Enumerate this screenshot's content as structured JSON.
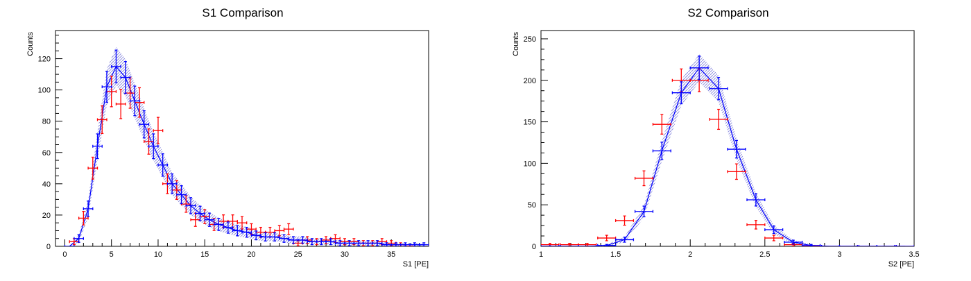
{
  "chart_data": [
    {
      "type": "scatter",
      "title": "S1 Comparison",
      "xlabel": "S1 [PE]",
      "ylabel": "Counts",
      "xlim": [
        -1,
        39
      ],
      "ylim": [
        0,
        138
      ],
      "xticks": [
        0,
        5,
        10,
        15,
        20,
        25,
        30,
        35
      ],
      "yticks": [
        0,
        20,
        40,
        60,
        80,
        100,
        120
      ],
      "grid": false,
      "legend": "none",
      "colors": {
        "series_red": "#ff0000",
        "series_blue": "#0000ff",
        "band": "#9090e0"
      },
      "series": [
        {
          "style": "red-points",
          "x": [
            1,
            2,
            3,
            4,
            5,
            6,
            7,
            8,
            9,
            10,
            11,
            12,
            13,
            14,
            15,
            16,
            17,
            18,
            19,
            20,
            21,
            22,
            23,
            24,
            25,
            26,
            27,
            28,
            29,
            30,
            31,
            32,
            33,
            34,
            35,
            36,
            37
          ],
          "y": [
            3,
            18,
            50,
            81,
            99,
            91,
            98,
            92,
            67,
            74,
            40,
            36,
            27,
            17,
            19,
            14,
            16,
            16,
            15,
            11,
            9,
            9,
            10,
            11,
            2,
            4,
            3,
            4,
            5,
            3,
            3,
            2,
            2,
            3,
            2,
            1,
            0
          ],
          "xerr": 0.5
        },
        {
          "style": "blue-model",
          "x": [
            0.5,
            1.5,
            2.5,
            3.5,
            4.5,
            5.5,
            6.5,
            7.5,
            8.5,
            9.5,
            10.5,
            11.5,
            12.5,
            13.5,
            14.5,
            15.5,
            16.5,
            17.5,
            18.5,
            19.5,
            20.5,
            21.5,
            22.5,
            23.5,
            24.5,
            25.5,
            26.5,
            27.5,
            28.5,
            29.5,
            30.5,
            31.5,
            32.5,
            33.5,
            34.5,
            35.5,
            36.5,
            37.5,
            38.5
          ],
          "y": [
            0,
            5,
            24,
            64,
            102,
            115,
            108,
            93,
            78,
            64,
            52,
            40,
            33,
            26,
            21,
            17,
            14,
            12,
            10,
            9,
            7,
            6,
            6,
            5,
            4,
            4,
            3,
            3,
            3,
            2,
            2,
            2,
            2,
            2,
            1,
            1,
            1,
            1,
            1
          ],
          "xerr": 0.5
        }
      ]
    },
    {
      "type": "scatter",
      "title": "S2 Comparison",
      "xlabel": "S2 [PE]",
      "ylabel": "Counts",
      "xlim": [
        1,
        3.5
      ],
      "ylim": [
        0,
        260
      ],
      "xticks": [
        1,
        1.5,
        2,
        2.5,
        3,
        3.5
      ],
      "yticks": [
        0,
        50,
        100,
        150,
        200,
        250
      ],
      "grid": false,
      "legend": "none",
      "colors": {
        "series_red": "#ff0000",
        "series_blue": "#0000ff",
        "band": "#9090e0"
      },
      "series": [
        {
          "style": "red-points",
          "x": [
            1.06,
            1.19,
            1.31,
            1.44,
            1.56,
            1.69,
            1.81,
            1.94,
            2.06,
            2.19,
            2.31,
            2.44,
            2.56,
            2.69,
            2.81,
            2.94,
            3.06,
            3.19,
            3.31,
            3.44
          ],
          "y": [
            2,
            2,
            2,
            10,
            31,
            82,
            147,
            200,
            200,
            153,
            90,
            26,
            10,
            2,
            0,
            0,
            0,
            0,
            0,
            0
          ],
          "xerr": 0.06
        },
        {
          "style": "blue-model",
          "x": [
            1.0,
            1.06,
            1.19,
            1.31,
            1.44,
            1.56,
            1.69,
            1.81,
            1.94,
            2.06,
            2.19,
            2.31,
            2.44,
            2.56,
            2.69,
            2.81,
            2.94,
            3.06,
            3.19,
            3.31,
            3.44
          ],
          "y": [
            0,
            0,
            0,
            0,
            1,
            8,
            42,
            115,
            185,
            215,
            190,
            117,
            56,
            20,
            5,
            1,
            0,
            0,
            0,
            0,
            0
          ],
          "xerr": 0.06
        }
      ]
    }
  ]
}
